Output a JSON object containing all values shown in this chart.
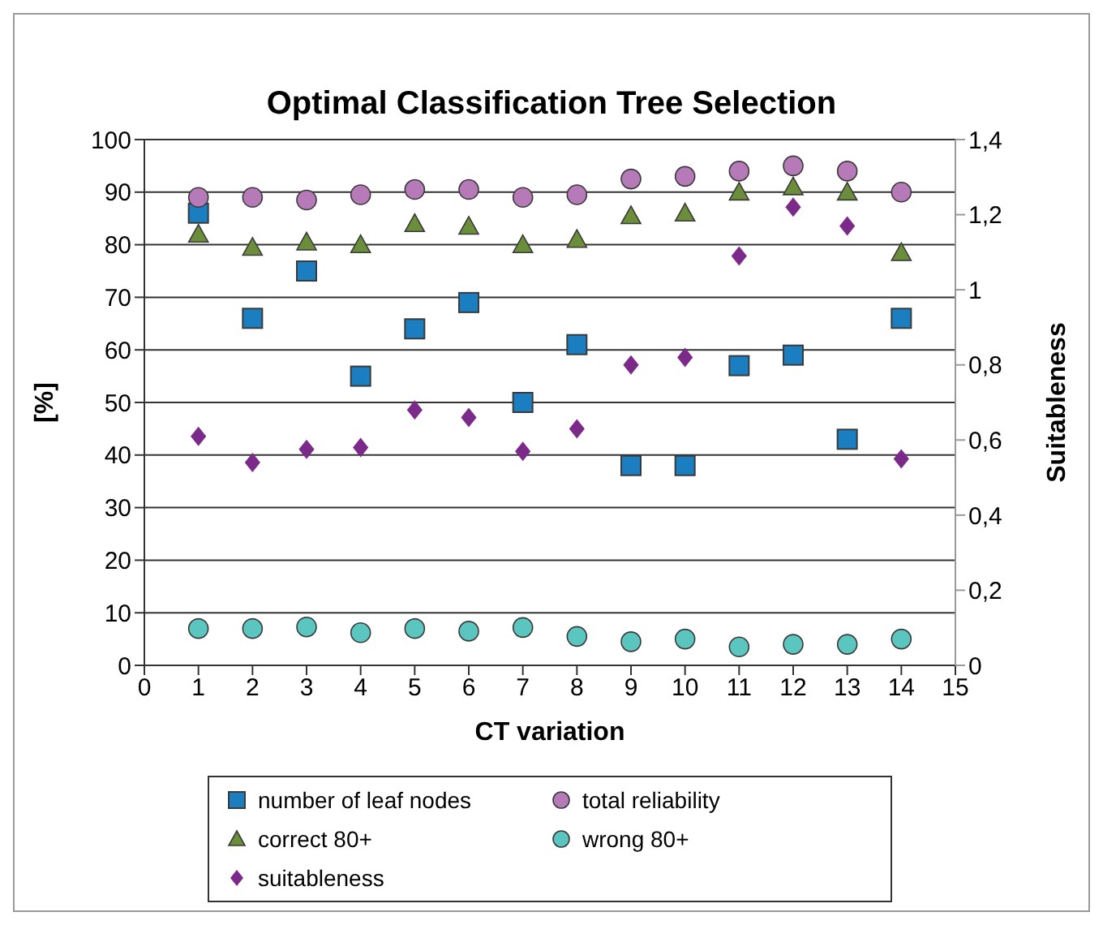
{
  "chart_data": {
    "type": "scatter",
    "title": "Optimal Classification Tree Selection",
    "xlabel": "CT variation",
    "ylabel": "[%]",
    "y2label": "Suitableness",
    "x": [
      1,
      2,
      3,
      4,
      5,
      6,
      7,
      8,
      9,
      10,
      11,
      12,
      13,
      14
    ],
    "series": [
      {
        "name": "number of leaf nodes",
        "color": "#1a7ec0",
        "marker": "square",
        "values": [
          86,
          66,
          75,
          55,
          64,
          69,
          50,
          61,
          38,
          38,
          57,
          59,
          43,
          66
        ]
      },
      {
        "name": "total reliability",
        "color": "#b77ab8",
        "marker": "circle",
        "values": [
          89,
          89,
          88.5,
          89.5,
          90.5,
          90.5,
          89,
          89.5,
          92.5,
          93,
          94,
          95,
          94,
          90
        ]
      },
      {
        "name": "correct 80+",
        "color": "#6b8e3a",
        "marker": "triangle",
        "values": [
          82,
          79.5,
          80.5,
          80,
          84,
          83.5,
          80,
          81,
          85.5,
          86,
          90,
          91,
          90,
          78.5
        ]
      },
      {
        "name": "wrong 80+",
        "color": "#5bc5c0",
        "marker": "circle",
        "values": [
          7,
          7,
          7.3,
          6.2,
          7,
          6.5,
          7.2,
          5.5,
          4.5,
          5,
          3.5,
          4,
          4,
          5
        ]
      },
      {
        "name": "suitableness",
        "color": "#7b2a8a",
        "marker": "diamond",
        "axis": "y2",
        "values": [
          0.61,
          0.54,
          0.575,
          0.58,
          0.68,
          0.66,
          0.57,
          0.63,
          0.8,
          0.82,
          1.09,
          1.22,
          1.17,
          0.55
        ]
      }
    ],
    "xlim": [
      0,
      15
    ],
    "xticks": [
      0,
      1,
      2,
      3,
      4,
      5,
      6,
      7,
      8,
      9,
      10,
      11,
      12,
      13,
      14,
      15
    ],
    "ylim": [
      0,
      100
    ],
    "yticks": [
      0,
      10,
      20,
      30,
      40,
      50,
      60,
      70,
      80,
      90,
      100
    ],
    "y2lim": [
      0,
      1.4
    ],
    "y2ticks": [
      0,
      {
        "value": 0.2,
        "label": "0,2"
      },
      {
        "value": 0.4,
        "label": "0,4"
      },
      {
        "value": 0.6,
        "label": "0,6"
      },
      {
        "value": 0.8,
        "label": "0,8"
      },
      1,
      {
        "value": 1.2,
        "label": "1,2"
      },
      {
        "value": 1.4,
        "label": "1,4"
      }
    ],
    "grid": "y",
    "legend": "bottom"
  }
}
